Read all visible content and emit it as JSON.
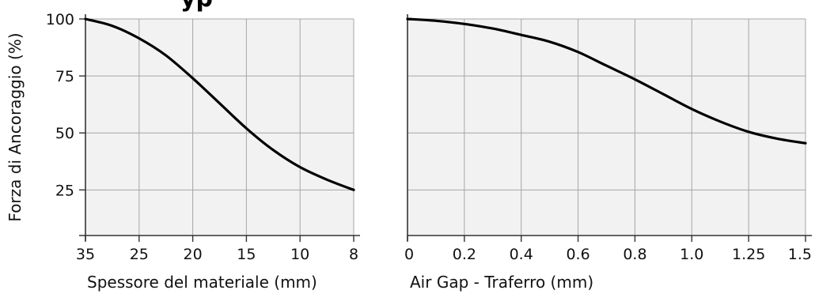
{
  "title_fragment": "yp",
  "colors": {
    "plot_background": "#f2f2f2",
    "grid": "#a6a6a6",
    "axis": "#333333",
    "curve": "#000000",
    "text": "#111111"
  },
  "chart_data": [
    {
      "type": "line",
      "xlabel": "Spessore del materiale (mm)",
      "ylabel": "Forza di Ancoraggio (%)",
      "x_categories": [
        "35",
        "25",
        "20",
        "15",
        "10",
        "8"
      ],
      "y_ticks": [
        25,
        50,
        75,
        100
      ],
      "ylim": [
        5,
        100
      ],
      "grid": true,
      "series": [
        {
          "x_index": [
            0,
            0.5,
            1,
            1.5,
            2,
            2.5,
            3,
            3.5,
            4,
            4.5,
            5
          ],
          "values": [
            100,
            97,
            91.5,
            84,
            74,
            63,
            52,
            42.5,
            35,
            29.5,
            25
          ]
        }
      ]
    },
    {
      "type": "line",
      "xlabel": "Air Gap - Traferro (mm)",
      "ylabel": "",
      "x_categories": [
        "0",
        "0.2",
        "0.4",
        "0.6",
        "0.8",
        "1.0",
        "1.25",
        "1.5"
      ],
      "y_ticks": [
        25,
        50,
        75,
        100
      ],
      "ylim": [
        5,
        100
      ],
      "grid": true,
      "series": [
        {
          "x_index": [
            0,
            0.5,
            1,
            1.5,
            2,
            2.5,
            3,
            3.5,
            4,
            4.5,
            5,
            5.5,
            6,
            6.5,
            7
          ],
          "values": [
            100,
            99.2,
            97.8,
            95.8,
            93,
            90,
            85.5,
            79.5,
            73.5,
            67,
            60.5,
            55,
            50.5,
            47.5,
            45.5
          ]
        }
      ]
    }
  ]
}
